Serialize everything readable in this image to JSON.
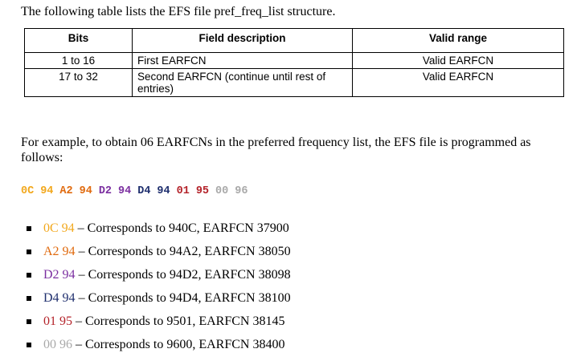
{
  "intro": "The following table lists the EFS file pref_freq_list structure.",
  "table": {
    "headers": [
      "Bits",
      "Field description",
      "Valid range"
    ],
    "rows": [
      [
        "1 to 16",
        "First EARFCN",
        "Valid EARFCN"
      ],
      [
        "17 to 32",
        "Second EARFCN (continue until rest of entries)",
        "Valid EARFCN"
      ]
    ]
  },
  "paragraph": "For example, to obtain 06 EARFCNs in the preferred frequency list, the EFS file is programmed as follows:",
  "hex_bytes": [
    {
      "text": "0C",
      "color": "#f2a81d"
    },
    {
      "text": "94",
      "color": "#f2a81d"
    },
    {
      "text": "A2",
      "color": "#e06a0e"
    },
    {
      "text": "94",
      "color": "#e06a0e"
    },
    {
      "text": "D2",
      "color": "#7b2fa0"
    },
    {
      "text": "94",
      "color": "#7b2fa0"
    },
    {
      "text": "D4",
      "color": "#1f2f6e"
    },
    {
      "text": "94",
      "color": "#1f2f6e"
    },
    {
      "text": "01",
      "color": "#b4232a"
    },
    {
      "text": "95",
      "color": "#b4232a"
    },
    {
      "text": "00",
      "color": "#a9a9a9"
    },
    {
      "text": "96",
      "color": "#a9a9a9"
    }
  ],
  "bullets": [
    {
      "pair": "0C 94",
      "text": "– Corresponds to 940C, EARFCN 37900",
      "color": "#f2a81d"
    },
    {
      "pair": "A2 94",
      "text": "– Corresponds to 94A2, EARFCN 38050",
      "color": "#e06a0e"
    },
    {
      "pair": "D2 94",
      "text": "– Corresponds to 94D2, EARFCN 38098",
      "color": "#7b2fa0"
    },
    {
      "pair": "D4 94",
      "text": "– Corresponds to 94D4, EARFCN 38100",
      "color": "#1f2f6e"
    },
    {
      "pair": "01 95",
      "text": "– Corresponds to 9501, EARFCN 38145",
      "color": "#b4232a"
    },
    {
      "pair": "00 96",
      "text": "– Corresponds to 9600, EARFCN 38400",
      "color": "#a9a9a9"
    }
  ]
}
